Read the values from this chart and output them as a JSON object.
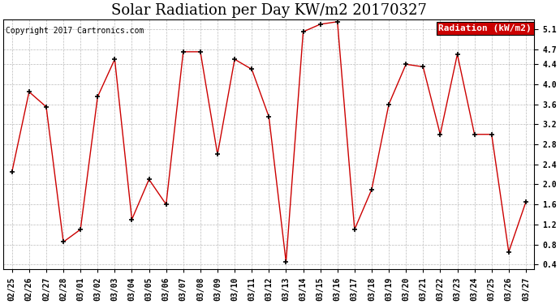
{
  "title": "Solar Radiation per Day KW/m2 20170327",
  "copyright_text": "Copyright 2017 Cartronics.com",
  "legend_label": "Radiation (kW/m2)",
  "dates": [
    "02/25",
    "02/26",
    "02/27",
    "02/28",
    "03/01",
    "03/02",
    "03/03",
    "03/04",
    "03/05",
    "03/06",
    "03/07",
    "03/08",
    "03/09",
    "03/10",
    "03/11",
    "03/12",
    "03/13",
    "03/14",
    "03/15",
    "03/16",
    "03/17",
    "03/18",
    "03/19",
    "03/20",
    "03/21",
    "03/22",
    "03/23",
    "03/24",
    "03/25",
    "03/26",
    "03/27"
  ],
  "values": [
    2.25,
    3.85,
    3.55,
    0.85,
    1.1,
    3.75,
    4.5,
    1.3,
    2.1,
    1.6,
    4.65,
    4.65,
    2.6,
    4.5,
    4.3,
    3.35,
    0.45,
    5.05,
    5.2,
    5.25,
    1.1,
    1.9,
    3.6,
    4.4,
    4.35,
    3.0,
    4.6,
    3.0,
    3.0,
    0.65,
    1.65
  ],
  "line_color": "#cc0000",
  "marker_color": "#000000",
  "legend_bg": "#cc0000",
  "legend_text_color": "white",
  "background_color": "white",
  "grid_color": "#bbbbbb",
  "ylim": [
    0.3,
    5.3
  ],
  "yticks": [
    0.4,
    0.8,
    1.2,
    1.6,
    2.0,
    2.4,
    2.8,
    3.2,
    3.6,
    4.0,
    4.4,
    4.7,
    5.1
  ],
  "title_fontsize": 13,
  "copyright_fontsize": 7,
  "tick_fontsize": 7,
  "legend_fontsize": 8
}
